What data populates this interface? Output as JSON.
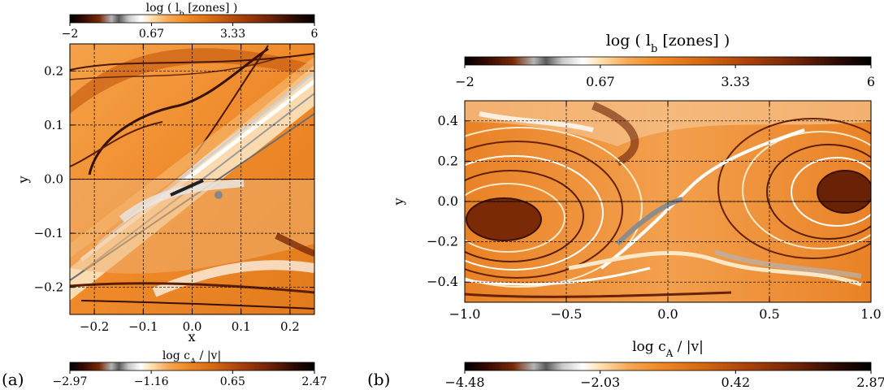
{
  "colors": {
    "orange": "#f08a24",
    "dark_brown": "#5a1e04",
    "light_cream": "#fde9c8",
    "grey": "#8c8c8c"
  },
  "chart_data": [
    {
      "type": "heatmap",
      "panel_label": "(a)",
      "xlabel": "x",
      "ylabel": "y",
      "xlim": [
        -0.25,
        0.25
      ],
      "ylim": [
        -0.25,
        0.25
      ],
      "x_ticks": [
        -0.2,
        -0.1,
        0.0,
        0.1,
        0.2
      ],
      "y_ticks": [
        -0.2,
        -0.1,
        0.0,
        0.1,
        0.2
      ],
      "x_tick_labels": [
        "−0.2",
        "−0.1",
        "0.0",
        "0.1",
        "0.2"
      ],
      "y_tick_labels": [
        "−0.2",
        "−0.1",
        "0.0",
        "0.1",
        "0.2"
      ],
      "grid": true,
      "split_at_y": 0.0,
      "top_half": {
        "colorbar_title": "log ( l",
        "colorbar_sub": "b",
        "colorbar_unit": " [zones] )",
        "colorbar_range": [
          -2,
          6
        ],
        "colorbar_ticks": [
          -2,
          0.67,
          3.33,
          6
        ],
        "colorbar_tick_labels": [
          "−2",
          "0.67",
          "3.33",
          "6"
        ]
      },
      "bottom_half": {
        "colorbar_title": "log c",
        "colorbar_sub": "A",
        "colorbar_unit": " / |v|",
        "colorbar_range": [
          -2.97,
          2.47
        ],
        "colorbar_ticks": [
          -2.97,
          -1.16,
          0.65,
          2.47
        ],
        "colorbar_tick_labels": [
          "−2.97",
          "−1.16",
          "0.65",
          "2.47"
        ]
      }
    },
    {
      "type": "heatmap",
      "panel_label": "(b)",
      "xlabel": "",
      "ylabel": "y",
      "xlim": [
        -1.0,
        1.0
      ],
      "ylim": [
        -0.5,
        0.5
      ],
      "x_ticks": [
        -1.0,
        -0.5,
        0.0,
        0.5,
        1.0
      ],
      "y_ticks": [
        -0.4,
        -0.2,
        0.0,
        0.2,
        0.4
      ],
      "x_tick_labels": [
        "−1.0",
        "−0.5",
        "0.0",
        "0.5",
        "1.0"
      ],
      "y_tick_labels": [
        "−0.4",
        "−0.2",
        "0.0",
        "0.2",
        "0.4"
      ],
      "grid": true,
      "split_at_y": 0.0,
      "top_half": {
        "colorbar_title": "log ( l",
        "colorbar_sub": "b",
        "colorbar_unit": " [zones] )",
        "colorbar_range": [
          -2,
          6
        ],
        "colorbar_ticks": [
          -2,
          0.67,
          3.33,
          6
        ],
        "colorbar_tick_labels": [
          "−2",
          "0.67",
          "3.33",
          "6"
        ]
      },
      "bottom_half": {
        "colorbar_title": "log c",
        "colorbar_sub": "A",
        "colorbar_unit": " / |v|",
        "colorbar_range": [
          -4.48,
          2.87
        ],
        "colorbar_ticks": [
          -4.48,
          -2.03,
          0.42,
          2.87
        ],
        "colorbar_tick_labels": [
          "−4.48",
          "−2.03",
          "0.42",
          "2.87"
        ]
      }
    }
  ]
}
